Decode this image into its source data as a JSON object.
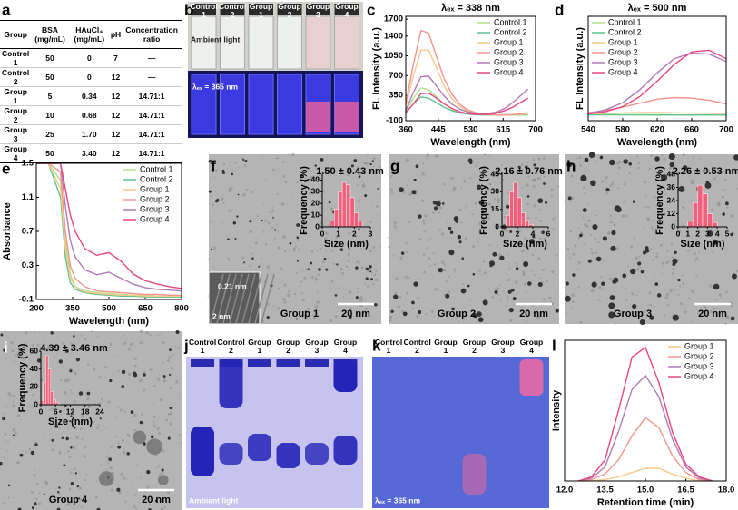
{
  "panel_labels": [
    "a",
    "b",
    "c",
    "d",
    "e",
    "f",
    "g",
    "h",
    "i",
    "j",
    "k",
    "l"
  ],
  "table": {
    "header": [
      "Group",
      "BSA (mg/mL)",
      "HAuCl₄ (mg/mL)",
      "pH",
      "Concentration ratio"
    ],
    "rows": [
      [
        "Control 1",
        "50",
        "0",
        "7",
        "—"
      ],
      [
        "Control 2",
        "50",
        "0",
        "12",
        "—"
      ],
      [
        "Group 1",
        "5",
        "0.34",
        "12",
        "14.71:1"
      ],
      [
        "Group 2",
        "10",
        "0.68",
        "12",
        "14.71:1"
      ],
      [
        "Group 3",
        "25",
        "1.70",
        "12",
        "14.71:1"
      ],
      [
        "Group 4",
        "50",
        "3.40",
        "12",
        "14.71:1"
      ]
    ]
  },
  "photo": {
    "lanes": [
      "Control 1",
      "Control 2",
      "Group 1",
      "Group 2",
      "Group 3",
      "Group 4"
    ],
    "top_caption": "Ambient light",
    "bottom_caption": "λₑₓ = 365 nm"
  },
  "tem": [
    {
      "label": "Group 1",
      "scale": "20 nm"
    },
    {
      "label": "Group 2",
      "scale": "20 nm"
    },
    {
      "label": "Group 3",
      "scale": "20 nm"
    },
    {
      "label": "Group 4",
      "scale": "20 nm"
    }
  ],
  "hrtem": {
    "spacing": "0.21 nm",
    "scale": "2 nm"
  },
  "gel_ambient": {
    "lanes": [
      "Control 1",
      "Control 2",
      "Group 1",
      "Group 2",
      "Group 3",
      "Group 4"
    ],
    "caption": "Ambient light"
  },
  "gel_uv": {
    "lanes": [
      "Control 1",
      "Control 2",
      "Group 1",
      "Group 2",
      "Group 3",
      "Group 4"
    ],
    "caption": "λₑₓ = 365 nm"
  },
  "chart_data": [
    {
      "type": "line",
      "title": "λₑₓ = 338 nm",
      "xlabel": "Wavelength (nm)",
      "ylabel": "FL Intensity (a.u.)",
      "x": [
        360,
        380,
        400,
        420,
        440,
        460,
        480,
        500,
        520,
        540,
        560,
        580,
        600,
        620,
        640,
        660,
        680
      ],
      "xlim": [
        360,
        700
      ],
      "xticks": [
        360,
        445,
        530,
        615,
        700
      ],
      "ylim": [
        -100,
        1750
      ],
      "yticks": [
        -100,
        350,
        700,
        1050,
        1400,
        1700
      ],
      "legend": "upper right",
      "series": [
        {
          "name": "Control 1",
          "color": "#b5e08a",
          "values": [
            60,
            300,
            480,
            450,
            330,
            200,
            110,
            55,
            25,
            10,
            5,
            3,
            2,
            2,
            2,
            3,
            5
          ]
        },
        {
          "name": "Control 2",
          "color": "#5cc48f",
          "values": [
            40,
            200,
            320,
            300,
            220,
            140,
            80,
            40,
            20,
            8,
            4,
            2,
            1,
            1,
            1,
            2,
            3
          ]
        },
        {
          "name": "Group 1",
          "color": "#f7c98a",
          "values": [
            150,
            700,
            1150,
            1150,
            850,
            520,
            300,
            160,
            80,
            40,
            15,
            5,
            0,
            0,
            5,
            10,
            20
          ]
        },
        {
          "name": "Group 2",
          "color": "#f4948c",
          "values": [
            200,
            900,
            1500,
            1450,
            1050,
            650,
            380,
            200,
            100,
            50,
            20,
            10,
            5,
            5,
            10,
            20,
            40
          ]
        },
        {
          "name": "Group 3",
          "color": "#b07ab8",
          "values": [
            80,
            400,
            680,
            690,
            520,
            340,
            200,
            110,
            60,
            30,
            20,
            30,
            60,
            120,
            220,
            340,
            460
          ]
        },
        {
          "name": "Group 4",
          "color": "#e8467e",
          "values": [
            40,
            200,
            380,
            390,
            300,
            200,
            120,
            60,
            30,
            15,
            10,
            15,
            40,
            80,
            140,
            220,
            300
          ]
        }
      ]
    },
    {
      "type": "line",
      "title": "λₑₓ = 500 nm",
      "xlabel": "Wavelength (nm)",
      "ylabel": "FL Intensity (a.u.)",
      "x": [
        540,
        560,
        580,
        600,
        620,
        640,
        660,
        680,
        700
      ],
      "xlim": [
        540,
        700
      ],
      "xticks": [
        540,
        580,
        620,
        660,
        700
      ],
      "ylim": [
        -100,
        1750
      ],
      "legend": "upper left",
      "series": [
        {
          "name": "Control 1",
          "color": "#b5e08a",
          "values": [
            10,
            8,
            6,
            5,
            4,
            3,
            2,
            2,
            1
          ]
        },
        {
          "name": "Control 2",
          "color": "#5cc48f",
          "values": [
            5,
            4,
            3,
            3,
            2,
            2,
            1,
            1,
            1
          ]
        },
        {
          "name": "Group 1",
          "color": "#f7c98a",
          "values": [
            20,
            30,
            40,
            45,
            45,
            40,
            35,
            30,
            25
          ]
        },
        {
          "name": "Group 2",
          "color": "#f4948c",
          "values": [
            40,
            80,
            140,
            210,
            280,
            310,
            300,
            260,
            200
          ]
        },
        {
          "name": "Group 3",
          "color": "#b07ab8",
          "values": [
            30,
            90,
            220,
            450,
            750,
            1000,
            1100,
            1080,
            950
          ]
        },
        {
          "name": "Group 4",
          "color": "#e8467e",
          "values": [
            20,
            60,
            150,
            330,
            600,
            900,
            1120,
            1150,
            1000
          ]
        }
      ]
    },
    {
      "type": "line",
      "xlabel": "Wavelength (nm)",
      "ylabel": "Absorbance",
      "x": [
        200,
        250,
        300,
        320,
        340,
        360,
        400,
        450,
        500,
        550,
        600,
        650,
        700,
        750,
        800
      ],
      "xlim": [
        200,
        800
      ],
      "xticks": [
        200,
        350,
        500,
        650,
        800
      ],
      "ylim": [
        -0.1,
        1.5
      ],
      "yticks": [
        -0.1,
        0.3,
        0.7,
        1.1,
        1.5
      ],
      "legend": "upper right",
      "series": [
        {
          "name": "Control 1",
          "color": "#b5e08a",
          "values": [
            1.5,
            1.5,
            1.3,
            0.6,
            0.2,
            0.05,
            0.0,
            -0.02,
            -0.03,
            -0.04,
            -0.05,
            -0.05,
            -0.06,
            -0.06,
            -0.06
          ]
        },
        {
          "name": "Control 2",
          "color": "#5cc48f",
          "values": [
            1.5,
            1.5,
            1.1,
            0.4,
            0.1,
            0.02,
            -0.02,
            -0.04,
            -0.05,
            -0.06,
            -0.06,
            -0.07,
            -0.07,
            -0.07,
            -0.07
          ]
        },
        {
          "name": "Group 1",
          "color": "#f7c98a",
          "values": [
            1.5,
            1.5,
            1.2,
            0.5,
            0.15,
            0.05,
            -0.01,
            -0.03,
            -0.04,
            -0.05,
            -0.05,
            -0.06,
            -0.06,
            -0.06,
            -0.06
          ]
        },
        {
          "name": "Group 2",
          "color": "#f4948c",
          "values": [
            1.5,
            1.5,
            1.4,
            0.7,
            0.3,
            0.15,
            0.05,
            0.0,
            -0.01,
            -0.02,
            -0.03,
            -0.04,
            -0.04,
            -0.05,
            -0.05
          ]
        },
        {
          "name": "Group 3",
          "color": "#b07ab8",
          "values": [
            1.5,
            1.5,
            1.5,
            1.0,
            0.6,
            0.4,
            0.25,
            0.19,
            0.22,
            0.15,
            0.08,
            0.04,
            0.02,
            0.01,
            0.0
          ]
        },
        {
          "name": "Group 4",
          "color": "#e8467e",
          "values": [
            1.5,
            1.5,
            1.5,
            1.2,
            0.9,
            0.7,
            0.5,
            0.42,
            0.45,
            0.35,
            0.2,
            0.12,
            0.08,
            0.05,
            0.03
          ]
        }
      ]
    },
    {
      "type": "histogram",
      "annotation": "1.50 ± 0.43 nm",
      "xlabel": "Size (nm)",
      "ylabel": "Frequency (%)",
      "color": "#f0607a",
      "bins": [
        0.5,
        0.75,
        1,
        1.25,
        1.5,
        1.75,
        2,
        2.25,
        2.5
      ],
      "counts": [
        5,
        15,
        30,
        38,
        36,
        25,
        12,
        5
      ],
      "xlim": [
        0,
        3
      ],
      "xticks": [
        0,
        1,
        2,
        3
      ],
      "ylim": [
        0,
        45
      ],
      "yticks": [
        0,
        10,
        20,
        30,
        40
      ]
    },
    {
      "type": "histogram",
      "annotation": "2.16 ± 0.76 nm",
      "xlabel": "Size (nm)",
      "ylabel": "Frequency (%)",
      "color": "#f0607a",
      "bins": [
        0.5,
        1,
        1.5,
        2,
        2.5,
        3,
        3.5,
        4
      ],
      "counts": [
        10,
        30,
        38,
        25,
        12,
        6,
        2
      ],
      "xlim": [
        0,
        6
      ],
      "xticks": [
        0,
        2,
        4,
        6
      ],
      "ylim": [
        0,
        45
      ],
      "yticks": [
        0,
        15,
        30,
        45
      ]
    },
    {
      "type": "histogram",
      "annotation": "2.26 ± 0.53 nm",
      "xlabel": "Size (nm)",
      "ylabel": "Frequency (%)",
      "color": "#f0607a",
      "bins": [
        1,
        1.5,
        2,
        2.5,
        3,
        3.5,
        4
      ],
      "counts": [
        5,
        22,
        38,
        30,
        12,
        4
      ],
      "xlim": [
        0,
        5
      ],
      "xticks": [
        0,
        1,
        2,
        3,
        4,
        5
      ],
      "ylim": [
        0,
        48
      ],
      "yticks": [
        0,
        12,
        24,
        36,
        48
      ]
    },
    {
      "type": "histogram",
      "annotation": "4.39 ± 3.46 nm",
      "xlabel": "Size (nm)",
      "ylabel": "Frequency (%)",
      "color": "#f0607a",
      "bins": [
        0,
        1,
        2,
        3,
        4,
        5,
        6,
        7,
        8
      ],
      "counts": [
        5,
        25,
        55,
        40,
        15,
        6,
        3,
        1
      ],
      "xlim": [
        0,
        24
      ],
      "xticks": [
        0,
        6,
        12,
        18,
        24
      ],
      "ylim": [
        0,
        60
      ],
      "yticks": [
        0,
        20,
        40,
        60
      ]
    },
    {
      "type": "line",
      "xlabel": "Retention time (min)",
      "ylabel": "Intensity",
      "x": [
        12.5,
        13,
        13.5,
        14,
        14.5,
        15,
        15.5,
        16,
        16.5,
        17,
        17.5
      ],
      "xlim": [
        12,
        18
      ],
      "xticks": [
        {
          "value": 12,
          "label": "12.0"
        },
        13.5,
        {
          "value": 15,
          "label": "15.0"
        },
        16.5,
        {
          "value": 18,
          "label": "18.0"
        }
      ],
      "ylim": [
        0,
        100
      ],
      "legend": "upper right",
      "series": [
        {
          "name": "Group 1",
          "color": "#f7c98a",
          "values": [
            0,
            0,
            1,
            3,
            6,
            9,
            9,
            5,
            2,
            0,
            0
          ]
        },
        {
          "name": "Group 2",
          "color": "#f4948c",
          "values": [
            0,
            1,
            5,
            15,
            32,
            45,
            38,
            18,
            6,
            1,
            0
          ]
        },
        {
          "name": "Group 3",
          "color": "#b07ab8",
          "values": [
            0,
            2,
            10,
            35,
            65,
            75,
            60,
            30,
            10,
            2,
            0
          ]
        },
        {
          "name": "Group 4",
          "color": "#e8467e",
          "values": [
            0,
            3,
            15,
            50,
            88,
            95,
            70,
            35,
            12,
            3,
            0
          ]
        }
      ]
    }
  ]
}
